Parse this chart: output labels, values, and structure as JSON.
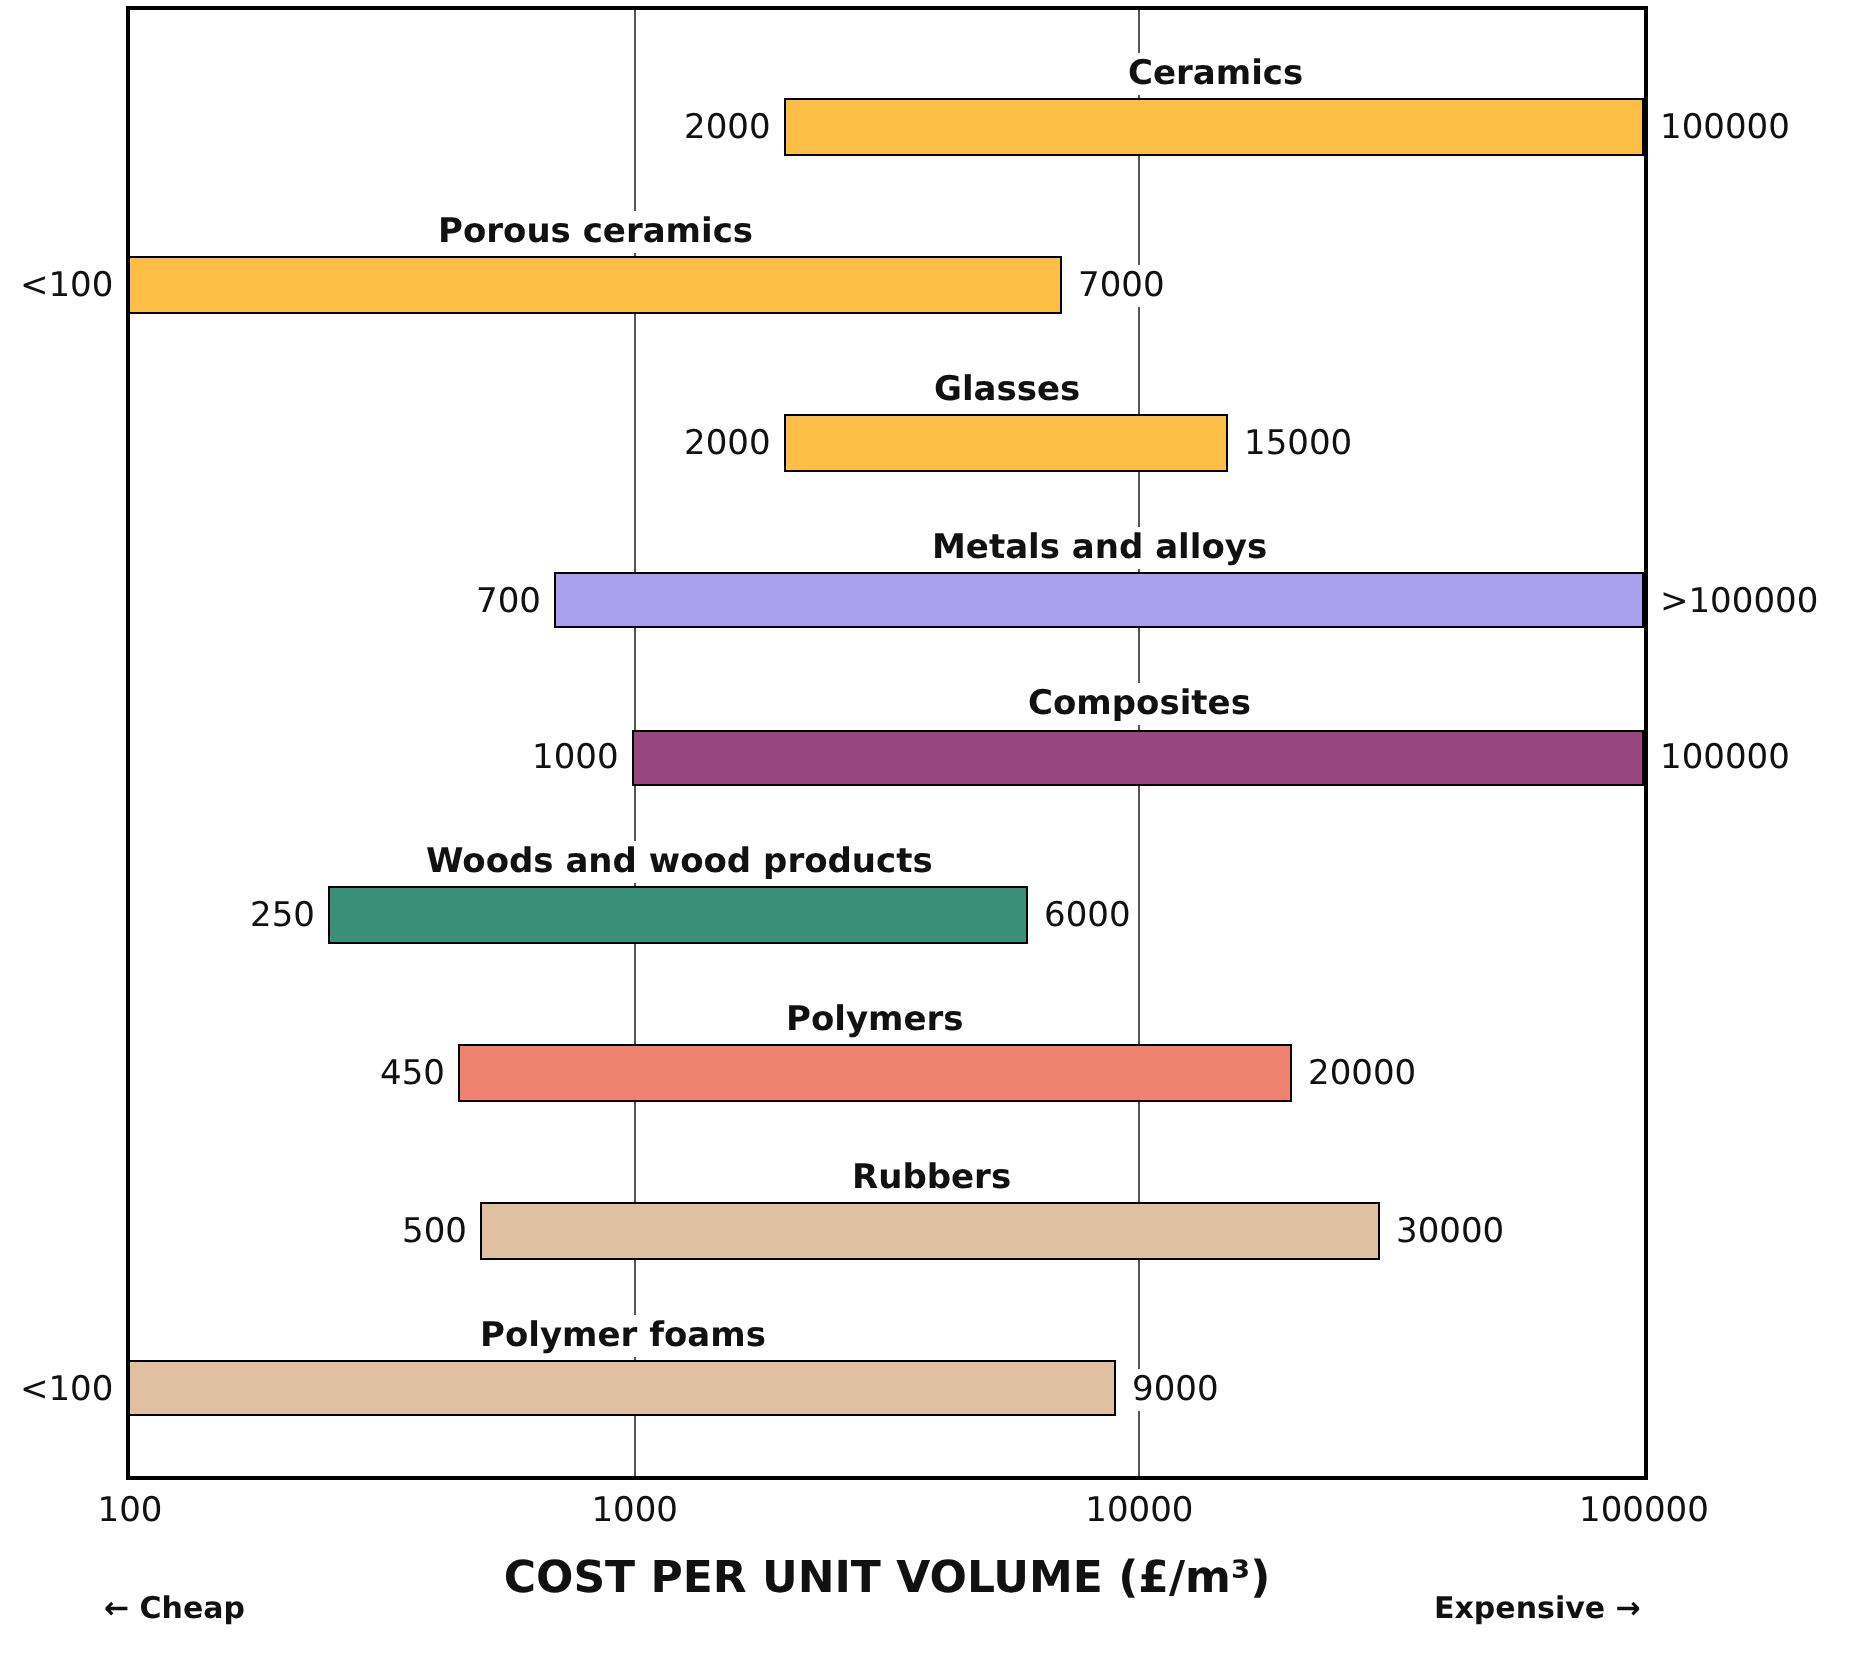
{
  "chart_data": {
    "type": "bar",
    "orientation": "horizontal",
    "categories": [
      "Ceramics",
      "Porous ceramics",
      "Glasses",
      "Metals and alloys",
      "Composites",
      "Woods and wood products",
      "Polymers",
      "Rubbers",
      "Polymer foams"
    ],
    "base": [
      2000,
      100,
      2000,
      700,
      1000,
      250,
      450,
      500,
      100
    ],
    "values": [
      98000,
      6900,
      13000,
      99300,
      99000,
      5750,
      19550,
      29500,
      8900
    ],
    "colors": [
      "#fbbf45",
      "#fbbf45",
      "#fbbf45",
      "#aaa0ee",
      "#97467e",
      "#3a8f78",
      "#ef8270",
      "#dfc0a0",
      "#dfc0a0"
    ],
    "log": "x",
    "xlim": [
      100,
      100000
    ],
    "xticks": [
      100,
      1000,
      10000,
      100000
    ],
    "xlabel": "COST PER UNIT VOLUME (£/m³)",
    "grid": "x",
    "tick_labels": "x",
    "annotations": [
      {
        "text": "2000",
        "x": 2000,
        "y": "Ceramics"
      },
      {
        "text": "100000",
        "x": 100000,
        "y": "Ceramics"
      },
      {
        "text": "<100",
        "x": 100,
        "y": "Porous ceramics"
      },
      {
        "text": "7000",
        "x": 7000,
        "y": "Porous ceramics"
      },
      {
        "text": "2000",
        "x": 2000,
        "y": "Glasses"
      },
      {
        "text": "15000",
        "x": 15000,
        "y": "Glasses"
      },
      {
        "text": "700",
        "x": 700,
        "y": "Metals and alloys"
      },
      {
        "text": ">100000",
        "x": 100000,
        "y": "Metals and alloys"
      },
      {
        "text": "1000",
        "x": 1000,
        "y": "Composites"
      },
      {
        "text": "100000",
        "x": 100000,
        "y": "Composites"
      },
      {
        "text": "250",
        "x": 250,
        "y": "Woods and wood products"
      },
      {
        "text": "6000",
        "x": 6000,
        "y": "Woods and wood products"
      },
      {
        "text": "450",
        "x": 450,
        "y": "Polymers"
      },
      {
        "text": "20000",
        "x": 20000,
        "y": "Polymers"
      },
      {
        "text": "500",
        "x": 500,
        "y": "Rubbers"
      },
      {
        "text": "30000",
        "x": 30000,
        "y": "Rubbers"
      },
      {
        "text": "<100",
        "x": 100,
        "y": "Polymer foams"
      },
      {
        "text": "9000",
        "x": 9000,
        "y": "Polymer foams"
      },
      "← Cheap",
      "Expensive →"
    ]
  }
}
